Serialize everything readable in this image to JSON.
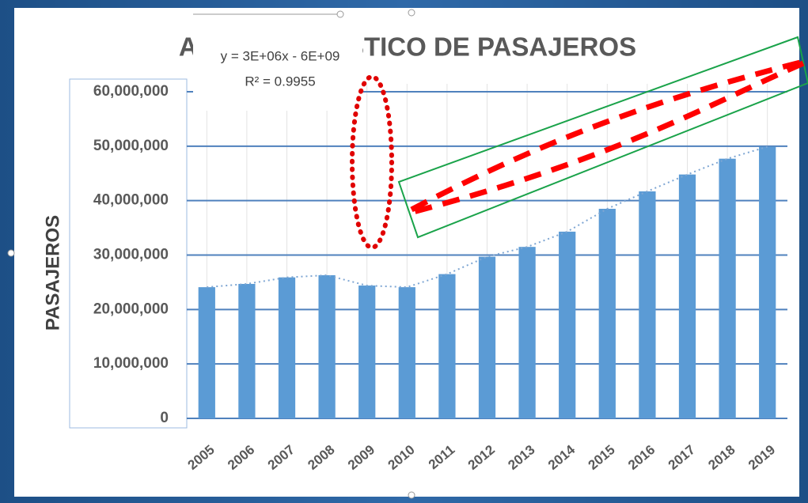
{
  "chart_data": {
    "type": "bar",
    "title": "AICM ESTADISTICO DE PASAJEROS",
    "y_label": "PASAJEROS",
    "trendline_equation": "y = 3E+06x - 6E+09",
    "trendline_r2": "R² = 0.9955",
    "categories": [
      "2005",
      "2006",
      "2007",
      "2008",
      "2009",
      "2010",
      "2011",
      "2012",
      "2013",
      "2014",
      "2015",
      "2016",
      "2017",
      "2018",
      "2019"
    ],
    "values": [
      24100000,
      24700000,
      25900000,
      26300000,
      24400000,
      24100000,
      26500000,
      29700000,
      31500000,
      34300000,
      38500000,
      41700000,
      44800000,
      47700000,
      49900000
    ],
    "color": "#5b9bd5",
    "ylim": [
      0,
      60000000
    ],
    "yticks": [
      0,
      {
        "value": 10000000,
        "label": "10,000,000"
      },
      {
        "value": 20000000,
        "label": "20,000,000"
      },
      {
        "value": 30000000,
        "label": "30,000,000"
      },
      {
        "value": 40000000,
        "label": "40,000,000"
      },
      {
        "value": 50000000,
        "label": "50,000,000"
      },
      {
        "value": 60000000,
        "label": "60,000,000"
      }
    ],
    "grid": true
  }
}
